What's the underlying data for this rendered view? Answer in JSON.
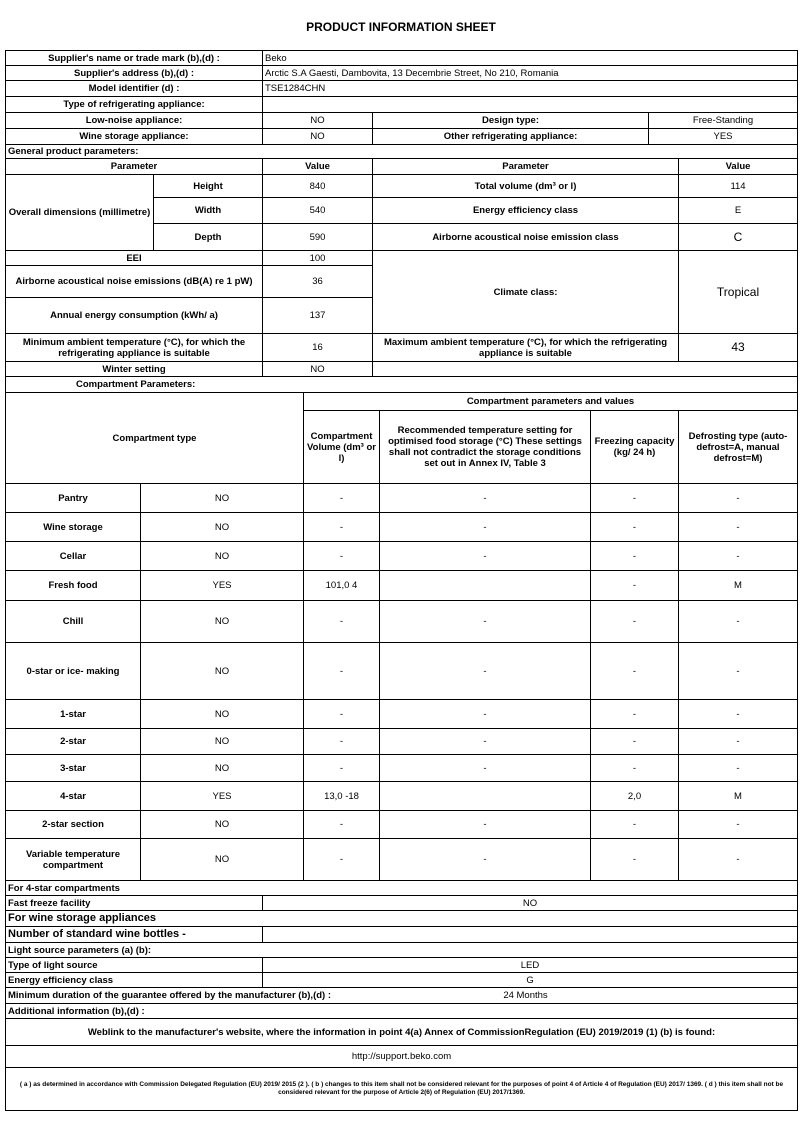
{
  "title": "PRODUCT INFORMATION SHEET",
  "supplier": {
    "name_label": "Supplier's name or trade mark (b),(d) :",
    "name": "Beko",
    "address_label": "Supplier's address (b),(d) :",
    "address": "Arctic S.A  Gaesti, Dambovita, 13 Decembrie Street, No 210, Romania",
    "model_label": "Model identifier (d) :",
    "model": "TSE1284CHN",
    "type_label": "Type of refrigerating appliance:",
    "low_noise_label": "Low-noise appliance:",
    "low_noise": "NO",
    "design_type_label": "Design type:",
    "design_type": "Free-Standing",
    "wine_label": "Wine storage appliance:",
    "wine": "NO",
    "other_label": "Other refrigerating appliance:",
    "other": "YES"
  },
  "general": {
    "heading": "General product parameters:",
    "param_header": "Parameter",
    "value_header": "Value",
    "overall_dimensions": "Overall dimensions (millimetre)",
    "height_label": "Height",
    "height": "840",
    "width_label": "Width",
    "width": "540",
    "depth_label": "Depth",
    "depth": "590",
    "total_volume_label": "Total volume (dm³ or l)",
    "total_volume": "114",
    "energy_class_label": "Energy efficiency class",
    "energy_class": "E",
    "noise_class_label": "Airborne acoustical noise emission class",
    "noise_class": "C",
    "eei_label": "EEI",
    "eei": "100",
    "noise_label": "Airborne acoustical noise emissions (dB(A) re 1 pW)",
    "noise": "36",
    "annual_label": "Annual energy consumption (kWh/ a)",
    "annual": "137",
    "climate_label": "Climate class:",
    "climate": "Tropical",
    "min_ambient_label": "Minimum ambient temperature (°C), for which the refrigerating appliance is suitable",
    "min_ambient": "16",
    "max_ambient_label": "Maximum ambient temperature (°C), for which the refrigerating appliance is suitable",
    "max_ambient": "43",
    "winter_label": "Winter setting",
    "winter": "NO"
  },
  "compartments": {
    "heading": "Compartment Parameters:",
    "type_header": "Compartment type",
    "values_header": "Compartment parameters and values",
    "volume_header": "Compartment Volume (dm³ or l)",
    "temp_header": "Recommended temperature setting for optimised food storage (°C) These settings shall not contradict the storage conditions set out in Annex IV, Table 3",
    "freezing_header": "Freezing capacity (kg/ 24 h)",
    "defrost_header": "Defrosting type (auto-defrost=A, manual defrost=M)",
    "rows": [
      {
        "name": "Pantry",
        "present": "NO",
        "volume": "-",
        "temp": "-",
        "freezing": "-",
        "defrost": "-"
      },
      {
        "name": "Wine storage",
        "present": "NO",
        "volume": "-",
        "temp": "-",
        "freezing": "-",
        "defrost": "-"
      },
      {
        "name": "Cellar",
        "present": "NO",
        "volume": "-",
        "temp": "-",
        "freezing": "-",
        "defrost": "-"
      },
      {
        "name": "Fresh food",
        "present": "YES",
        "volume": "101,0 4",
        "temp": "",
        "freezing": "-",
        "defrost": "M"
      },
      {
        "name": "Chill",
        "present": "NO",
        "volume": "-",
        "temp": "-",
        "freezing": "-",
        "defrost": "-"
      },
      {
        "name": "0-star or ice- making",
        "present": "NO",
        "volume": "-",
        "temp": "-",
        "freezing": "-",
        "defrost": "-"
      },
      {
        "name": "1-star",
        "present": "NO",
        "volume": "-",
        "temp": "-",
        "freezing": "-",
        "defrost": "-"
      },
      {
        "name": "2-star",
        "present": "NO",
        "volume": "-",
        "temp": "-",
        "freezing": "-",
        "defrost": "-"
      },
      {
        "name": "3-star",
        "present": "NO",
        "volume": "-",
        "temp": "-",
        "freezing": "-",
        "defrost": "-"
      },
      {
        "name": "4-star",
        "present": "YES",
        "volume": "13,0 -18",
        "temp": "",
        "freezing": "2,0",
        "defrost": "M"
      },
      {
        "name": "2-star section",
        "present": "NO",
        "volume": "-",
        "temp": "-",
        "freezing": "-",
        "defrost": "-"
      },
      {
        "name": "Variable temperature compartment",
        "present": "NO",
        "volume": "-",
        "temp": "-",
        "freezing": "-",
        "defrost": "-"
      }
    ]
  },
  "other": {
    "four_star_heading": "For 4-star compartments",
    "fast_freeze_label": "Fast freeze facility",
    "fast_freeze": "NO",
    "wine_heading": "For wine storage appliances",
    "bottles_label": "Number of standard wine bottles -",
    "bottles": "",
    "light_heading": "Light source parameters (a) (b):",
    "light_type_label": "Type of light source",
    "light_type": "LED",
    "light_class_label": "Energy efficiency class",
    "light_class": "G",
    "guarantee_label": "Minimum duration of the guarantee offered by the manufacturer (b),(d) :",
    "guarantee": "24 Months",
    "additional_label": "Additional information (b),(d) :",
    "weblink_label": "Weblink to the manufacturer's website, where the information in point 4(a) Annex of CommissionRegulation (EU) 2019/2019 (1) (b) is found:",
    "weblink": "http://support.beko.com",
    "footnote": "( a ) as determined in accordance with Commission Delegated Regulation (EU) 2019/ 2015 (2 ). ( b ) changes to this item shall not be considered relevant for the purposes of point 4 of Article 4 of Regulation (EU) 2017/ 1369. ( d ) this item shall not be considered relevant for the purpose of Article 2(6) of Regulation (EU) 2017/1369."
  }
}
